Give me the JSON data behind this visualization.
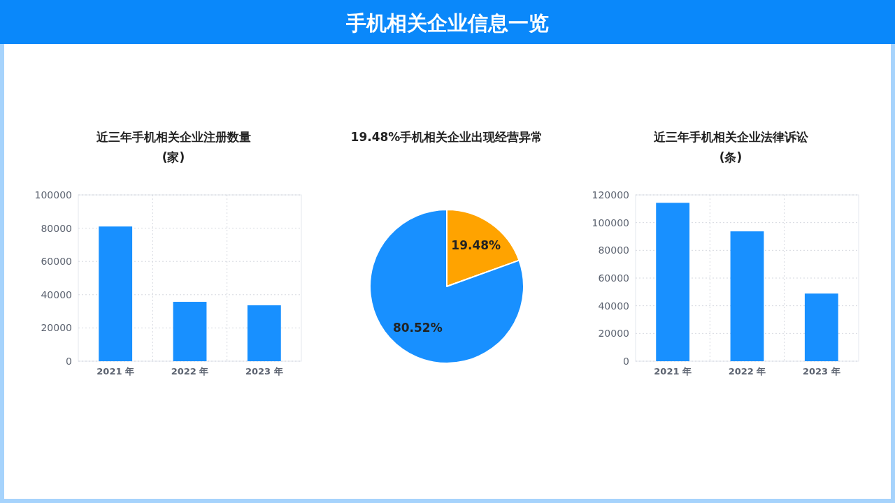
{
  "chart_data": [
    {
      "type": "other",
      "title": "手机相关企业信息一览"
    },
    {
      "type": "bar",
      "title": "近三年手机相关企业注册数量",
      "subtitle": "(家)",
      "categories": [
        "2021 年",
        "2022 年",
        "2023 年"
      ],
      "values": [
        81000,
        35700,
        33600
      ],
      "color": "#1890ff",
      "ylim": [
        0,
        100000
      ],
      "yticks": [
        0,
        20000,
        40000,
        60000,
        80000,
        100000
      ],
      "grid": true
    },
    {
      "type": "pie",
      "title": "19.48%手机相关企业出现经营异常",
      "categories": [
        null,
        null
      ],
      "values": [
        19.48,
        80.52
      ],
      "colors": [
        "#ffa300",
        "#1890ff"
      ],
      "value_labels": [
        "19.48%",
        "80.52%"
      ]
    },
    {
      "type": "bar",
      "title": "近三年手机相关企业法律诉讼",
      "subtitle": "(条)",
      "categories": [
        "2021 年",
        "2022 年",
        "2023 年"
      ],
      "values": [
        114300,
        93700,
        48800
      ],
      "color": "#1890ff",
      "ylim": [
        0,
        120000
      ],
      "yticks": [
        0,
        20000,
        40000,
        60000,
        80000,
        100000,
        120000
      ],
      "grid": true
    }
  ]
}
